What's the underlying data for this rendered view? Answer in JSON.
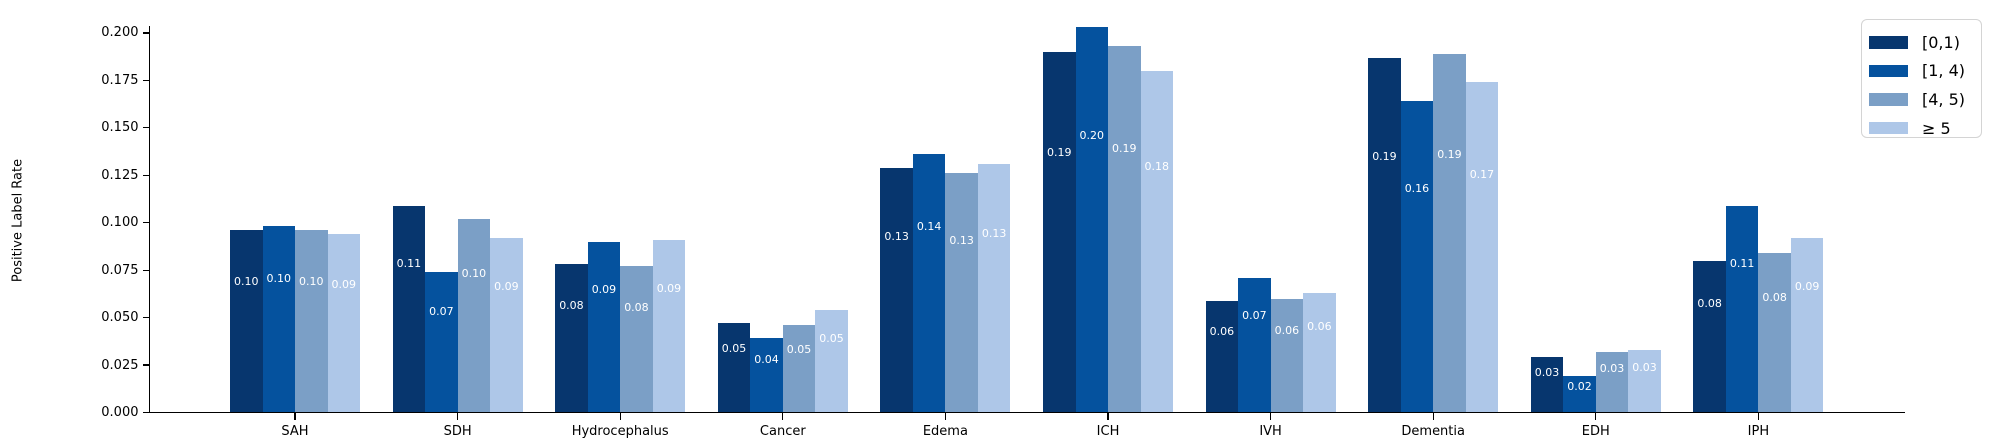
{
  "chart_data": {
    "type": "bar",
    "title": "",
    "xlabel": "",
    "ylabel": "Positive Label Rate",
    "ylim": [
      0.0,
      0.2036
    ],
    "grid": false,
    "legend_position": "upper-right-outside",
    "yticks": {
      "values": [
        0.0,
        0.025,
        0.05,
        0.075,
        0.1,
        0.125,
        0.15,
        0.175,
        0.2
      ],
      "labels": [
        "0.000",
        "0.025",
        "0.050",
        "0.075",
        "0.100",
        "0.125",
        "0.150",
        "0.175",
        "0.200"
      ]
    },
    "categories": [
      "SAH",
      "SDH",
      "Hydrocephalus",
      "Cancer",
      "Edema",
      "ICH",
      "IVH",
      "Dementia",
      "EDH",
      "IPH"
    ],
    "series": [
      {
        "name": "[0,1)",
        "color": "#07366e",
        "values": [
          0.096,
          0.109,
          0.078,
          0.047,
          0.129,
          0.19,
          0.059,
          0.187,
          0.029,
          0.08
        ],
        "labels": [
          "0.10",
          "0.11",
          "0.08",
          "0.05",
          "0.13",
          "0.19",
          "0.06",
          "0.19",
          "0.03",
          "0.08"
        ]
      },
      {
        "name": "[1, 4)",
        "color": "#05529e",
        "values": [
          0.098,
          0.074,
          0.09,
          0.039,
          0.136,
          0.203,
          0.071,
          0.164,
          0.019,
          0.109
        ],
        "labels": [
          "0.10",
          "0.07",
          "0.09",
          "0.04",
          "0.14",
          "0.20",
          "0.07",
          "0.16",
          "0.02",
          "0.11"
        ]
      },
      {
        "name": "[4, 5)",
        "color": "#7b9fc6",
        "values": [
          0.096,
          0.102,
          0.077,
          0.046,
          0.126,
          0.193,
          0.06,
          0.189,
          0.032,
          0.084
        ],
        "labels": [
          "0.10",
          "0.10",
          "0.08",
          "0.05",
          "0.13",
          "0.19",
          "0.06",
          "0.19",
          "0.03",
          "0.08"
        ]
      },
      {
        "name": "≥ 5",
        "color": "#aec7e8",
        "values": [
          0.094,
          0.092,
          0.091,
          0.054,
          0.131,
          0.18,
          0.063,
          0.174,
          0.033,
          0.092
        ],
        "labels": [
          "0.09",
          "0.09",
          "0.09",
          "0.05",
          "0.13",
          "0.18",
          "0.06",
          "0.17",
          "0.03",
          "0.09"
        ]
      }
    ]
  }
}
